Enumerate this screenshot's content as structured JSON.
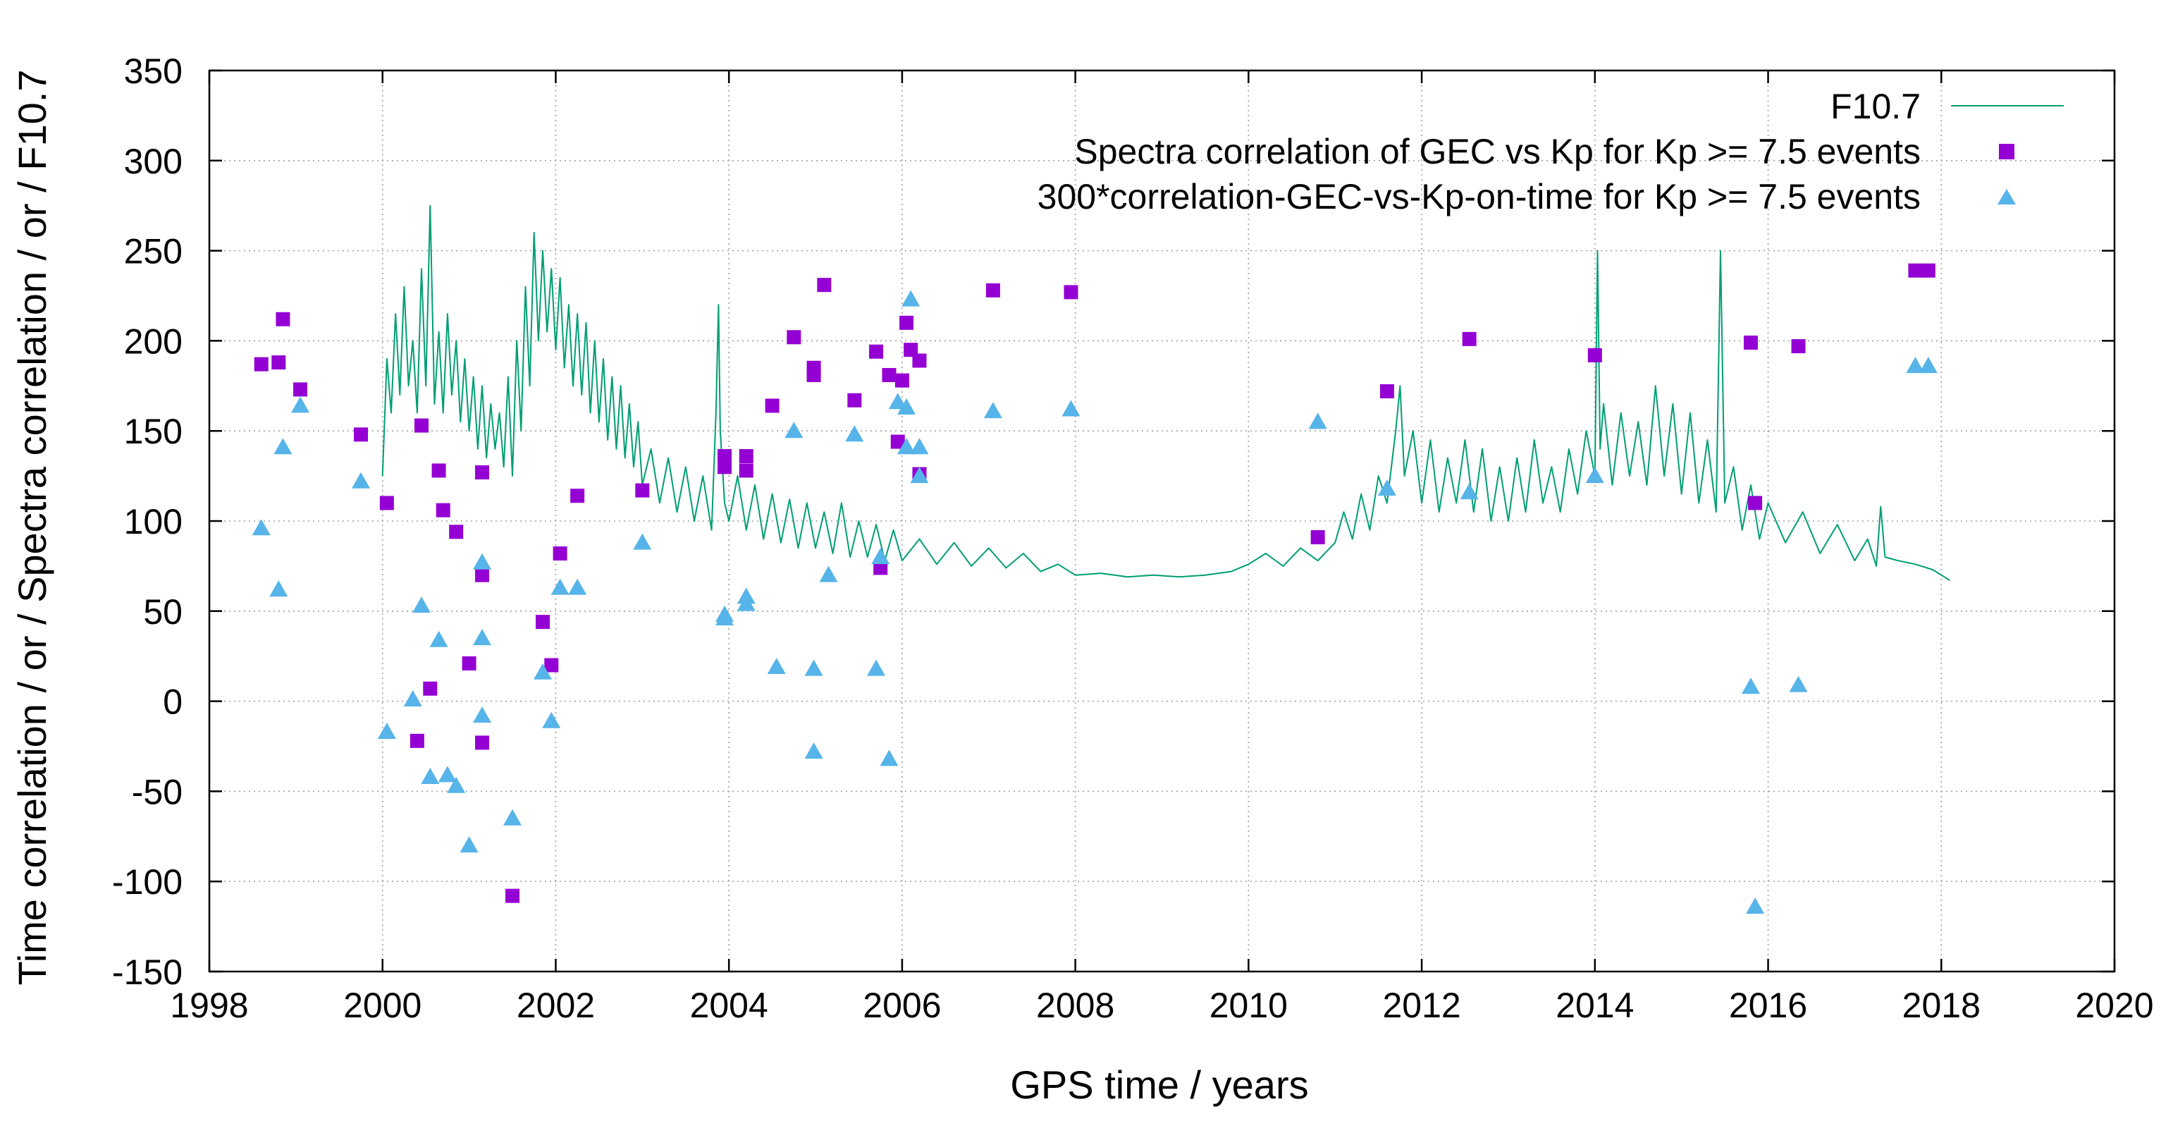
{
  "chart_data": {
    "type": "scatter",
    "xlabel": "GPS time / years",
    "ylabel": "Time correlation / or / Spectra correlation / or / F10.7",
    "xlim": [
      1998,
      2020
    ],
    "ylim": [
      -150,
      350
    ],
    "xticks": [
      1998,
      2000,
      2002,
      2004,
      2006,
      2008,
      2010,
      2012,
      2014,
      2016,
      2018,
      2020
    ],
    "yticks": [
      -150,
      -100,
      -50,
      0,
      50,
      100,
      150,
      200,
      250,
      300,
      350
    ],
    "grid": true,
    "legend_position": "top-right",
    "series": [
      {
        "name": "F10.7",
        "kind": "line",
        "color": "#009e73",
        "values": [
          [
            2000.0,
            125
          ],
          [
            2000.05,
            190
          ],
          [
            2000.1,
            160
          ],
          [
            2000.15,
            215
          ],
          [
            2000.2,
            170
          ],
          [
            2000.25,
            230
          ],
          [
            2000.3,
            175
          ],
          [
            2000.35,
            200
          ],
          [
            2000.4,
            160
          ],
          [
            2000.45,
            240
          ],
          [
            2000.5,
            175
          ],
          [
            2000.55,
            275
          ],
          [
            2000.6,
            165
          ],
          [
            2000.65,
            205
          ],
          [
            2000.7,
            160
          ],
          [
            2000.75,
            215
          ],
          [
            2000.8,
            170
          ],
          [
            2000.85,
            200
          ],
          [
            2000.9,
            155
          ],
          [
            2000.95,
            190
          ],
          [
            2001.0,
            150
          ],
          [
            2001.05,
            180
          ],
          [
            2001.1,
            140
          ],
          [
            2001.15,
            175
          ],
          [
            2001.2,
            135
          ],
          [
            2001.25,
            165
          ],
          [
            2001.3,
            140
          ],
          [
            2001.35,
            160
          ],
          [
            2001.4,
            130
          ],
          [
            2001.45,
            180
          ],
          [
            2001.5,
            125
          ],
          [
            2001.55,
            200
          ],
          [
            2001.6,
            150
          ],
          [
            2001.65,
            230
          ],
          [
            2001.7,
            175
          ],
          [
            2001.75,
            260
          ],
          [
            2001.8,
            200
          ],
          [
            2001.85,
            250
          ],
          [
            2001.9,
            205
          ],
          [
            2001.95,
            240
          ],
          [
            2002.0,
            195
          ],
          [
            2002.05,
            235
          ],
          [
            2002.1,
            185
          ],
          [
            2002.15,
            220
          ],
          [
            2002.2,
            175
          ],
          [
            2002.25,
            215
          ],
          [
            2002.3,
            170
          ],
          [
            2002.35,
            210
          ],
          [
            2002.4,
            160
          ],
          [
            2002.45,
            200
          ],
          [
            2002.5,
            155
          ],
          [
            2002.55,
            190
          ],
          [
            2002.6,
            145
          ],
          [
            2002.65,
            180
          ],
          [
            2002.7,
            140
          ],
          [
            2002.75,
            175
          ],
          [
            2002.8,
            135
          ],
          [
            2002.85,
            165
          ],
          [
            2002.9,
            130
          ],
          [
            2002.95,
            155
          ],
          [
            2003.0,
            120
          ],
          [
            2003.1,
            140
          ],
          [
            2003.2,
            110
          ],
          [
            2003.3,
            135
          ],
          [
            2003.4,
            105
          ],
          [
            2003.5,
            130
          ],
          [
            2003.6,
            100
          ],
          [
            2003.7,
            125
          ],
          [
            2003.8,
            95
          ],
          [
            2003.85,
            160
          ],
          [
            2003.88,
            220
          ],
          [
            2003.9,
            150
          ],
          [
            2003.95,
            110
          ],
          [
            2004.0,
            100
          ],
          [
            2004.1,
            125
          ],
          [
            2004.2,
            95
          ],
          [
            2004.3,
            120
          ],
          [
            2004.4,
            90
          ],
          [
            2004.5,
            115
          ],
          [
            2004.6,
            88
          ],
          [
            2004.7,
            112
          ],
          [
            2004.8,
            85
          ],
          [
            2004.9,
            110
          ],
          [
            2005.0,
            85
          ],
          [
            2005.1,
            105
          ],
          [
            2005.2,
            82
          ],
          [
            2005.3,
            110
          ],
          [
            2005.4,
            80
          ],
          [
            2005.5,
            100
          ],
          [
            2005.6,
            80
          ],
          [
            2005.7,
            98
          ],
          [
            2005.8,
            78
          ],
          [
            2005.9,
            95
          ],
          [
            2006.0,
            78
          ],
          [
            2006.2,
            90
          ],
          [
            2006.4,
            76
          ],
          [
            2006.6,
            88
          ],
          [
            2006.8,
            75
          ],
          [
            2007.0,
            85
          ],
          [
            2007.2,
            74
          ],
          [
            2007.4,
            82
          ],
          [
            2007.6,
            72
          ],
          [
            2007.8,
            76
          ],
          [
            2008.0,
            70
          ],
          [
            2008.3,
            71
          ],
          [
            2008.6,
            69
          ],
          [
            2008.9,
            70
          ],
          [
            2009.2,
            69
          ],
          [
            2009.5,
            70
          ],
          [
            2009.8,
            72
          ],
          [
            2010.0,
            76
          ],
          [
            2010.2,
            82
          ],
          [
            2010.4,
            75
          ],
          [
            2010.6,
            85
          ],
          [
            2010.8,
            78
          ],
          [
            2011.0,
            88
          ],
          [
            2011.1,
            105
          ],
          [
            2011.2,
            90
          ],
          [
            2011.3,
            115
          ],
          [
            2011.4,
            95
          ],
          [
            2011.5,
            125
          ],
          [
            2011.6,
            110
          ],
          [
            2011.7,
            150
          ],
          [
            2011.75,
            175
          ],
          [
            2011.8,
            125
          ],
          [
            2011.9,
            150
          ],
          [
            2012.0,
            110
          ],
          [
            2012.1,
            145
          ],
          [
            2012.2,
            105
          ],
          [
            2012.3,
            135
          ],
          [
            2012.4,
            110
          ],
          [
            2012.5,
            145
          ],
          [
            2012.6,
            105
          ],
          [
            2012.7,
            140
          ],
          [
            2012.8,
            100
          ],
          [
            2012.9,
            130
          ],
          [
            2013.0,
            100
          ],
          [
            2013.1,
            135
          ],
          [
            2013.2,
            105
          ],
          [
            2013.3,
            145
          ],
          [
            2013.4,
            110
          ],
          [
            2013.5,
            130
          ],
          [
            2013.6,
            105
          ],
          [
            2013.7,
            140
          ],
          [
            2013.8,
            115
          ],
          [
            2013.9,
            150
          ],
          [
            2014.0,
            125
          ],
          [
            2014.03,
            250
          ],
          [
            2014.06,
            140
          ],
          [
            2014.1,
            165
          ],
          [
            2014.2,
            120
          ],
          [
            2014.3,
            160
          ],
          [
            2014.4,
            125
          ],
          [
            2014.5,
            155
          ],
          [
            2014.6,
            120
          ],
          [
            2014.7,
            175
          ],
          [
            2014.8,
            125
          ],
          [
            2014.9,
            165
          ],
          [
            2015.0,
            115
          ],
          [
            2015.1,
            160
          ],
          [
            2015.2,
            110
          ],
          [
            2015.3,
            145
          ],
          [
            2015.4,
            105
          ],
          [
            2015.45,
            250
          ],
          [
            2015.5,
            110
          ],
          [
            2015.6,
            130
          ],
          [
            2015.7,
            95
          ],
          [
            2015.8,
            120
          ],
          [
            2015.9,
            90
          ],
          [
            2016.0,
            110
          ],
          [
            2016.2,
            88
          ],
          [
            2016.4,
            105
          ],
          [
            2016.6,
            82
          ],
          [
            2016.8,
            98
          ],
          [
            2017.0,
            78
          ],
          [
            2017.15,
            90
          ],
          [
            2017.25,
            75
          ],
          [
            2017.3,
            108
          ],
          [
            2017.35,
            80
          ],
          [
            2017.5,
            78
          ],
          [
            2017.7,
            76
          ],
          [
            2017.9,
            73
          ],
          [
            2018.1,
            67
          ]
        ]
      },
      {
        "name": "Spectra correlation of GEC vs Kp for Kp >= 7.5 events",
        "kind": "points",
        "marker": "square",
        "color": "#9400d3",
        "values": [
          [
            1998.6,
            187
          ],
          [
            1998.8,
            188
          ],
          [
            1998.85,
            212
          ],
          [
            1999.05,
            173
          ],
          [
            1999.75,
            148
          ],
          [
            2000.05,
            110
          ],
          [
            2000.45,
            153
          ],
          [
            2000.55,
            7
          ],
          [
            2000.65,
            128
          ],
          [
            2000.7,
            106
          ],
          [
            2000.85,
            94
          ],
          [
            2000.4,
            -22
          ],
          [
            2001.0,
            21
          ],
          [
            2001.15,
            127
          ],
          [
            2001.15,
            70
          ],
          [
            2001.15,
            -23
          ],
          [
            2001.5,
            -108
          ],
          [
            2001.85,
            44
          ],
          [
            2001.95,
            20
          ],
          [
            2002.05,
            82
          ],
          [
            2002.25,
            114
          ],
          [
            2003.0,
            117
          ],
          [
            2003.95,
            130
          ],
          [
            2003.95,
            136
          ],
          [
            2004.2,
            136
          ],
          [
            2004.2,
            128
          ],
          [
            2004.5,
            164
          ],
          [
            2004.75,
            202
          ],
          [
            2004.98,
            185
          ],
          [
            2004.98,
            181
          ],
          [
            2005.1,
            231
          ],
          [
            2005.45,
            167
          ],
          [
            2005.7,
            194
          ],
          [
            2005.75,
            74
          ],
          [
            2005.85,
            181
          ],
          [
            2005.95,
            144
          ],
          [
            2006.0,
            178
          ],
          [
            2006.05,
            210
          ],
          [
            2006.1,
            195
          ],
          [
            2006.2,
            189
          ],
          [
            2006.2,
            126
          ],
          [
            2007.05,
            228
          ],
          [
            2007.95,
            227
          ],
          [
            2010.8,
            91
          ],
          [
            2011.6,
            172
          ],
          [
            2012.55,
            201
          ],
          [
            2014.0,
            192
          ],
          [
            2015.8,
            199
          ],
          [
            2015.85,
            110
          ],
          [
            2016.35,
            197
          ],
          [
            2017.7,
            239
          ],
          [
            2017.85,
            239
          ]
        ]
      },
      {
        "name": "300*correlation-GEC-vs-Kp-on-time for Kp >= 7.5 events",
        "kind": "points",
        "marker": "triangle",
        "color": "#56b4e9",
        "values": [
          [
            1998.6,
            96
          ],
          [
            1998.8,
            62
          ],
          [
            1998.85,
            141
          ],
          [
            1999.05,
            164
          ],
          [
            1999.75,
            122
          ],
          [
            2000.05,
            -17
          ],
          [
            2000.35,
            1
          ],
          [
            2000.45,
            53
          ],
          [
            2000.55,
            -42
          ],
          [
            2000.65,
            34
          ],
          [
            2000.75,
            -41
          ],
          [
            2000.85,
            -47
          ],
          [
            2001.0,
            -80
          ],
          [
            2001.15,
            77
          ],
          [
            2001.15,
            -8
          ],
          [
            2001.15,
            35
          ],
          [
            2001.5,
            -65
          ],
          [
            2001.85,
            16
          ],
          [
            2001.95,
            -11
          ],
          [
            2002.05,
            63
          ],
          [
            2002.25,
            63
          ],
          [
            2003.0,
            88
          ],
          [
            2003.95,
            48
          ],
          [
            2003.95,
            46
          ],
          [
            2004.2,
            58
          ],
          [
            2004.2,
            54
          ],
          [
            2004.55,
            19
          ],
          [
            2004.75,
            150
          ],
          [
            2004.98,
            18
          ],
          [
            2004.98,
            -28
          ],
          [
            2005.15,
            70
          ],
          [
            2005.45,
            148
          ],
          [
            2005.7,
            18
          ],
          [
            2005.75,
            80
          ],
          [
            2005.85,
            -32
          ],
          [
            2005.95,
            166
          ],
          [
            2006.05,
            163
          ],
          [
            2006.05,
            141
          ],
          [
            2006.1,
            223
          ],
          [
            2006.2,
            141
          ],
          [
            2006.2,
            125
          ],
          [
            2007.05,
            161
          ],
          [
            2007.95,
            162
          ],
          [
            2010.8,
            155
          ],
          [
            2011.6,
            118
          ],
          [
            2012.55,
            116
          ],
          [
            2014.0,
            125
          ],
          [
            2015.8,
            8
          ],
          [
            2015.85,
            -114
          ],
          [
            2016.35,
            9
          ],
          [
            2017.7,
            186
          ],
          [
            2017.85,
            186
          ]
        ]
      }
    ]
  }
}
